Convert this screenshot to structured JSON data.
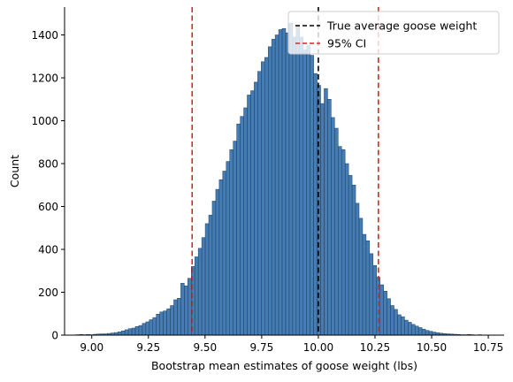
{
  "chart_data": {
    "type": "bar",
    "subtype": "histogram",
    "title": "",
    "xlabel": "Bootstrap mean estimates of goose weight (lbs)",
    "ylabel": "Count",
    "xlim": [
      8.88,
      10.82
    ],
    "ylim": [
      0,
      1530
    ],
    "x_ticks": [
      9.0,
      9.25,
      9.5,
      9.75,
      10.0,
      10.25,
      10.5,
      10.75
    ],
    "x_tick_labels": [
      "9.00",
      "9.25",
      "9.50",
      "9.75",
      "10.00",
      "10.25",
      "10.50",
      "10.75"
    ],
    "y_ticks": [
      0,
      200,
      400,
      600,
      800,
      1000,
      1200,
      1400
    ],
    "y_tick_labels": [
      "0",
      "200",
      "400",
      "600",
      "800",
      "1000",
      "1200",
      "1400"
    ],
    "bin_edges_start": 8.93,
    "bin_width": 0.01543,
    "counts": [
      2,
      3,
      2,
      3,
      2,
      4,
      5,
      6,
      6,
      8,
      10,
      12,
      15,
      20,
      25,
      30,
      33,
      40,
      45,
      55,
      62,
      72,
      82,
      98,
      108,
      113,
      123,
      138,
      165,
      172,
      242,
      230,
      265,
      320,
      365,
      405,
      455,
      520,
      560,
      625,
      680,
      725,
      765,
      810,
      865,
      905,
      985,
      1020,
      1060,
      1120,
      1140,
      1180,
      1230,
      1275,
      1295,
      1345,
      1380,
      1400,
      1425,
      1430,
      1410,
      1455,
      1390,
      1440,
      1390,
      1330,
      1350,
      1305,
      1220,
      1165,
      1080,
      1150,
      1100,
      1015,
      965,
      880,
      865,
      800,
      745,
      700,
      615,
      545,
      470,
      440,
      380,
      325,
      270,
      235,
      205,
      170,
      138,
      120,
      95,
      86,
      70,
      60,
      50,
      42,
      35,
      28,
      22,
      18,
      14,
      11,
      9,
      7,
      6,
      5,
      4,
      3,
      2,
      2,
      3,
      2,
      1,
      2,
      1
    ],
    "bar_color": "#3b75af",
    "bar_edge_color": "#1f3f5f",
    "vlines": [
      {
        "name": "True average goose weight",
        "x": 10.0,
        "color": "#000000",
        "style": "dashed"
      },
      {
        "name": "95% CI",
        "x": 9.443,
        "color": "#d62728",
        "style": "dashed"
      },
      {
        "name": "95% CI",
        "x": 10.265,
        "color": "#d62728",
        "style": "dashed"
      }
    ],
    "legend": {
      "placement": "top-right",
      "entries": [
        {
          "label": "True average goose weight",
          "color": "#000000"
        },
        {
          "label": "95% CI",
          "color": "#d62728"
        }
      ]
    },
    "spines": {
      "top": false,
      "right": false
    },
    "grid": false
  }
}
